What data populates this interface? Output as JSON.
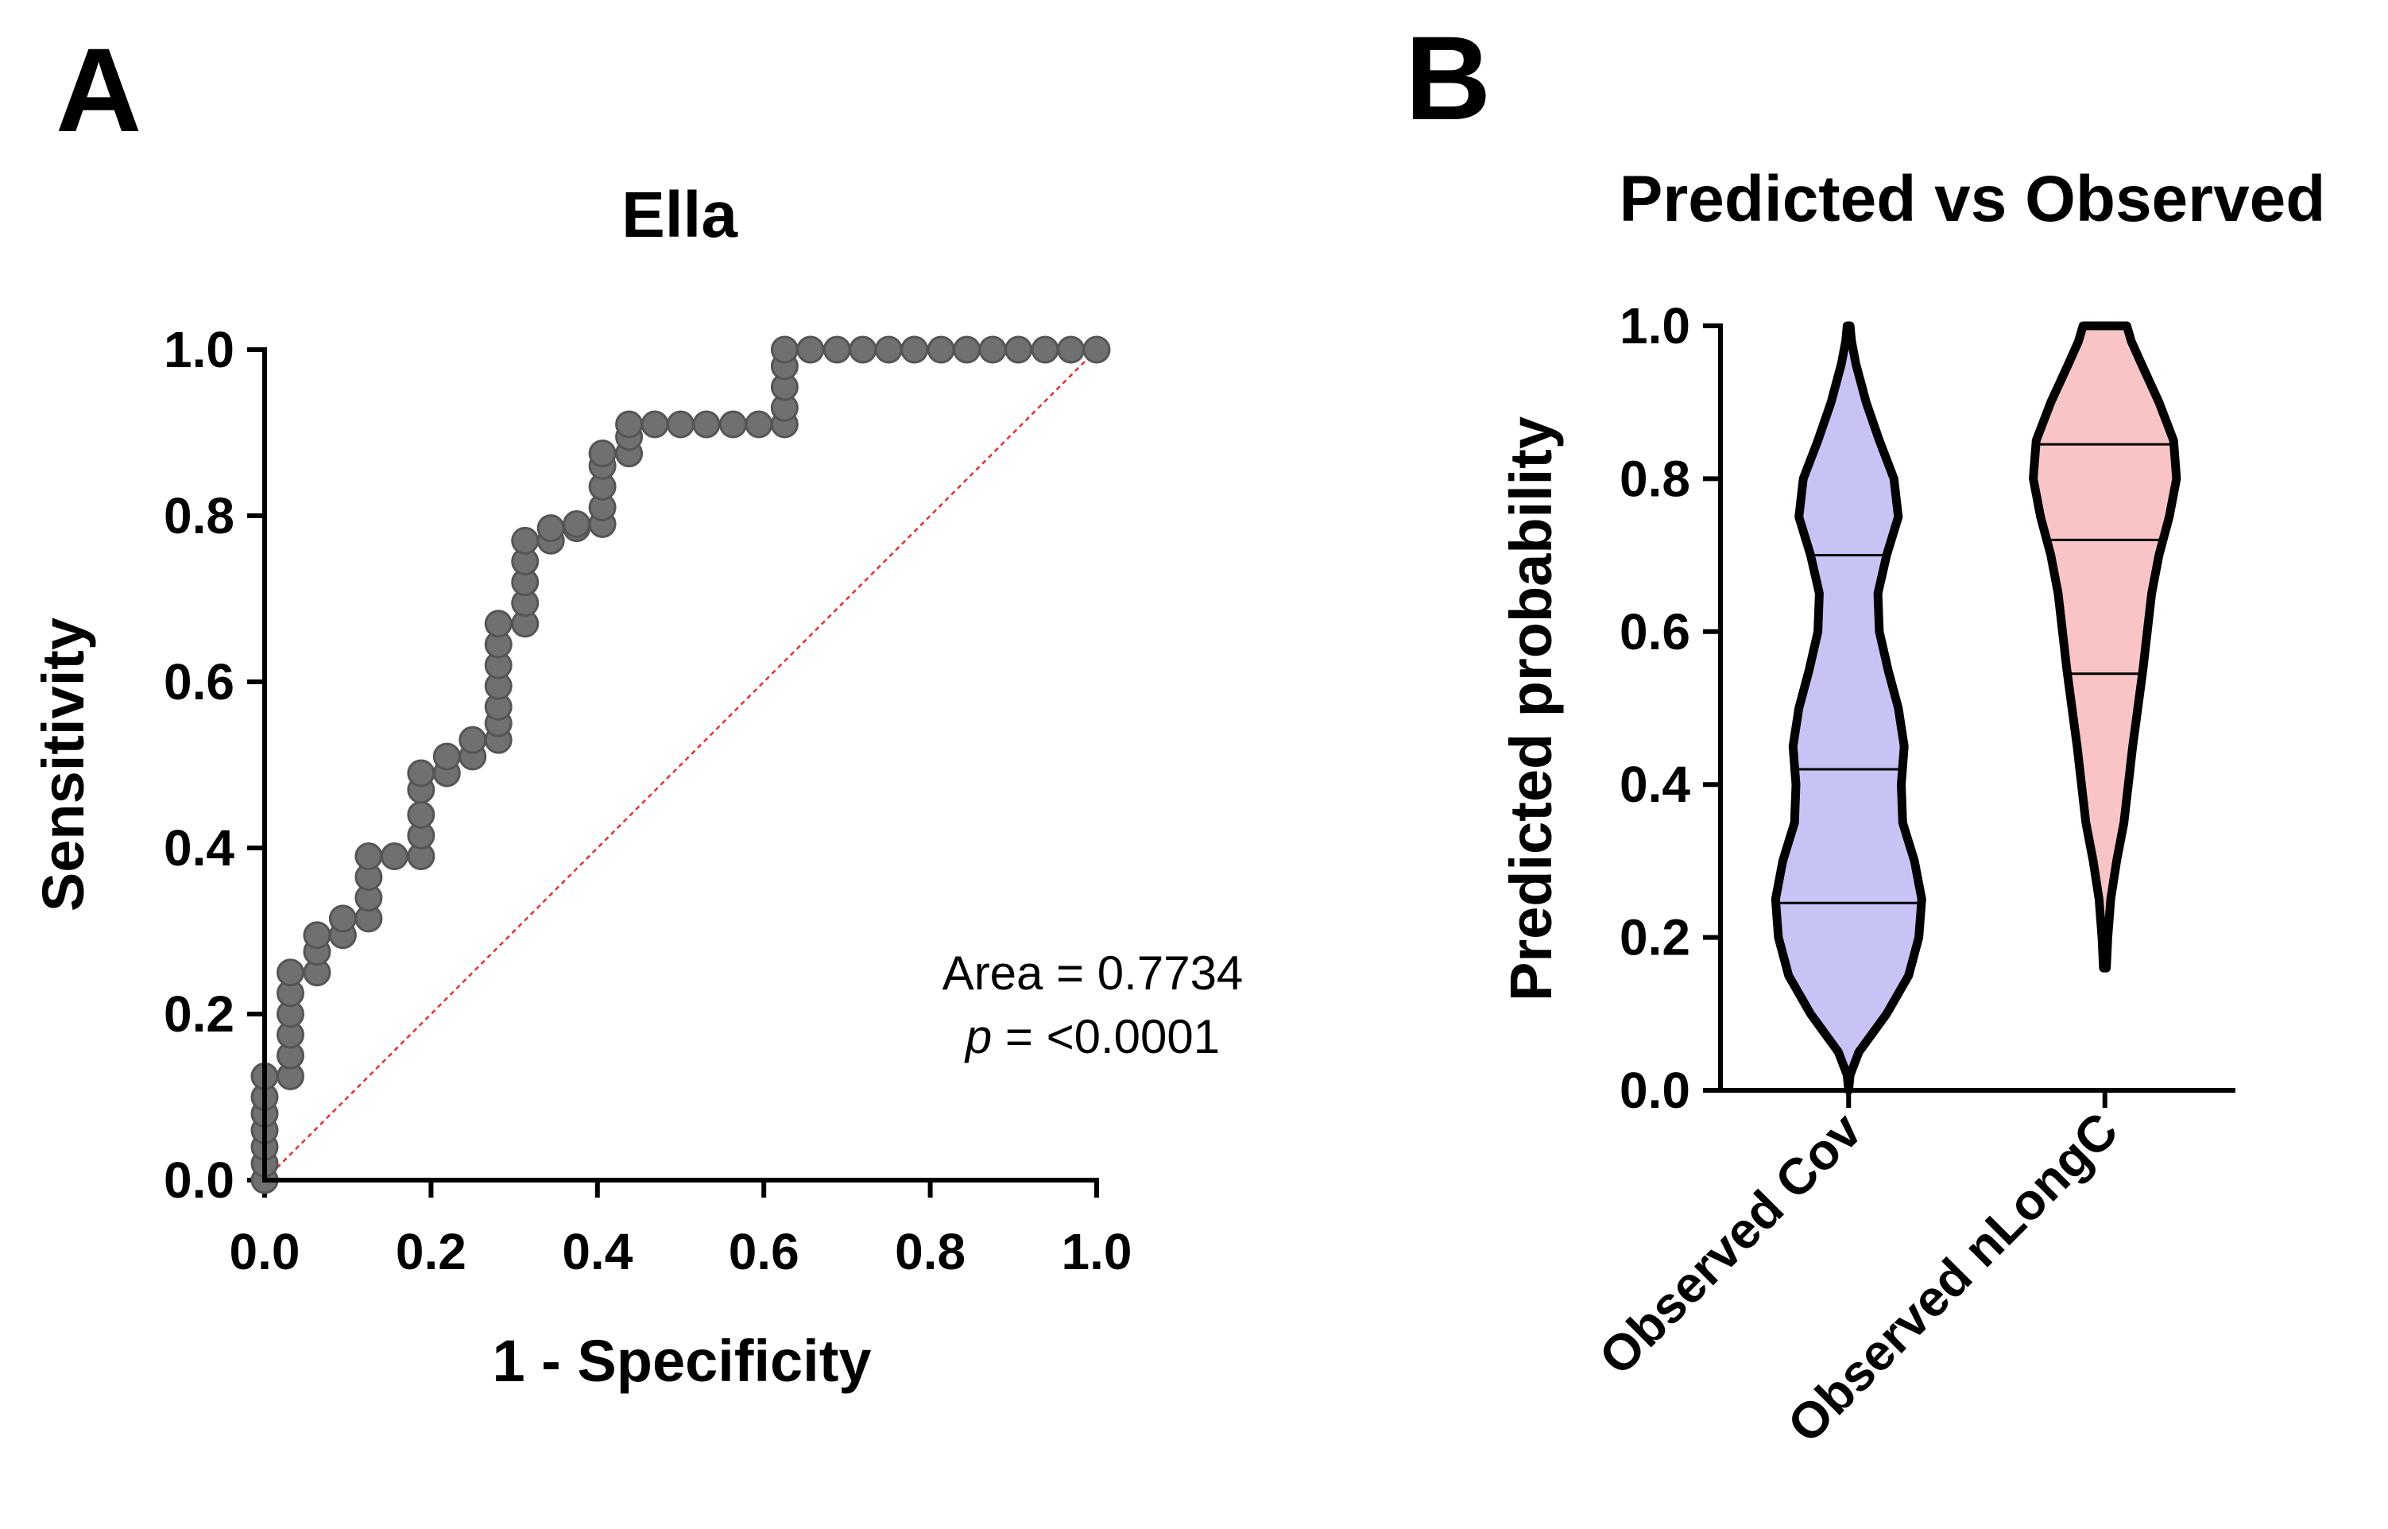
{
  "chart_data": [
    {
      "panel": "A",
      "type": "line",
      "title": "Ella",
      "xlabel": "1 - Specificity",
      "ylabel": "Sensitivity",
      "xlim": [
        0,
        1
      ],
      "ylim": [
        0,
        1
      ],
      "xticks": [
        "0.0",
        "0.2",
        "0.4",
        "0.6",
        "0.8",
        "1.0"
      ],
      "yticks": [
        "0.0",
        "0.2",
        "0.4",
        "0.6",
        "0.8",
        "1.0"
      ],
      "grid": false,
      "annotation": {
        "area_label": "Area = 0.7734",
        "p_symbol": "p",
        "p_value": " = <0.0001"
      },
      "series": [
        {
          "name": "ROC curve",
          "color": "#000000",
          "marker_color": "#707070",
          "points": [
            [
              0.0,
              0.0
            ],
            [
              0.0,
              0.02
            ],
            [
              0.0,
              0.04
            ],
            [
              0.0,
              0.06
            ],
            [
              0.0,
              0.08
            ],
            [
              0.0,
              0.1
            ],
            [
              0.0,
              0.125
            ],
            [
              0.031,
              0.125
            ],
            [
              0.031,
              0.15
            ],
            [
              0.031,
              0.175
            ],
            [
              0.031,
              0.2
            ],
            [
              0.031,
              0.225
            ],
            [
              0.031,
              0.25
            ],
            [
              0.063,
              0.25
            ],
            [
              0.063,
              0.275
            ],
            [
              0.063,
              0.295
            ],
            [
              0.094,
              0.295
            ],
            [
              0.094,
              0.315
            ],
            [
              0.125,
              0.315
            ],
            [
              0.125,
              0.34
            ],
            [
              0.125,
              0.365
            ],
            [
              0.125,
              0.39
            ],
            [
              0.156,
              0.39
            ],
            [
              0.188,
              0.39
            ],
            [
              0.188,
              0.415
            ],
            [
              0.188,
              0.44
            ],
            [
              0.188,
              0.47
            ],
            [
              0.188,
              0.49
            ],
            [
              0.219,
              0.49
            ],
            [
              0.219,
              0.51
            ],
            [
              0.25,
              0.51
            ],
            [
              0.25,
              0.53
            ],
            [
              0.281,
              0.53
            ],
            [
              0.281,
              0.55
            ],
            [
              0.281,
              0.57
            ],
            [
              0.281,
              0.595
            ],
            [
              0.281,
              0.62
            ],
            [
              0.281,
              0.645
            ],
            [
              0.281,
              0.67
            ],
            [
              0.313,
              0.67
            ],
            [
              0.313,
              0.695
            ],
            [
              0.313,
              0.72
            ],
            [
              0.313,
              0.745
            ],
            [
              0.313,
              0.77
            ],
            [
              0.344,
              0.77
            ],
            [
              0.344,
              0.785
            ],
            [
              0.375,
              0.785
            ],
            [
              0.375,
              0.79
            ],
            [
              0.406,
              0.79
            ],
            [
              0.406,
              0.81
            ],
            [
              0.406,
              0.835
            ],
            [
              0.406,
              0.86
            ],
            [
              0.406,
              0.875
            ],
            [
              0.438,
              0.875
            ],
            [
              0.438,
              0.895
            ],
            [
              0.438,
              0.91
            ],
            [
              0.469,
              0.91
            ],
            [
              0.5,
              0.91
            ],
            [
              0.531,
              0.91
            ],
            [
              0.563,
              0.91
            ],
            [
              0.594,
              0.91
            ],
            [
              0.625,
              0.91
            ],
            [
              0.625,
              0.93
            ],
            [
              0.625,
              0.955
            ],
            [
              0.625,
              0.98
            ],
            [
              0.625,
              1.0
            ],
            [
              0.656,
              1.0
            ],
            [
              0.688,
              1.0
            ],
            [
              0.719,
              1.0
            ],
            [
              0.75,
              1.0
            ],
            [
              0.781,
              1.0
            ],
            [
              0.813,
              1.0
            ],
            [
              0.844,
              1.0
            ],
            [
              0.875,
              1.0
            ],
            [
              0.906,
              1.0
            ],
            [
              0.938,
              1.0
            ],
            [
              0.969,
              1.0
            ],
            [
              1.0,
              1.0
            ]
          ]
        },
        {
          "name": "Reference line",
          "color": "#e8302a",
          "style": "dashed",
          "points": [
            [
              0,
              0
            ],
            [
              1,
              1
            ]
          ]
        }
      ]
    },
    {
      "panel": "B",
      "type": "violin",
      "title": "Predicted vs Observed",
      "xlabel": "",
      "ylabel": "Predicted probability",
      "ylim": [
        0,
        1
      ],
      "yticks": [
        "0.0",
        "0.2",
        "0.4",
        "0.6",
        "0.8",
        "1.0"
      ],
      "grid": false,
      "categories": [
        "Observed Cov",
        "Observed nLongC"
      ],
      "series": [
        {
          "name": "Observed Cov",
          "fill": "#c7c4f5",
          "min": 0.0,
          "max": 1.0,
          "quartiles": [
            0.245,
            0.42,
            0.7
          ],
          "density": [
            [
              0.0,
              0.0
            ],
            [
              0.02,
              0.02
            ],
            [
              0.05,
              0.14
            ],
            [
              0.1,
              0.52
            ],
            [
              0.15,
              0.82
            ],
            [
              0.2,
              0.96
            ],
            [
              0.25,
              1.0
            ],
            [
              0.3,
              0.9
            ],
            [
              0.35,
              0.74
            ],
            [
              0.4,
              0.72
            ],
            [
              0.45,
              0.76
            ],
            [
              0.5,
              0.68
            ],
            [
              0.55,
              0.54
            ],
            [
              0.6,
              0.42
            ],
            [
              0.65,
              0.4
            ],
            [
              0.7,
              0.52
            ],
            [
              0.75,
              0.68
            ],
            [
              0.8,
              0.62
            ],
            [
              0.85,
              0.42
            ],
            [
              0.9,
              0.24
            ],
            [
              0.95,
              0.1
            ],
            [
              0.98,
              0.04
            ],
            [
              1.0,
              0.02
            ]
          ]
        },
        {
          "name": "Observed nLongC",
          "fill": "#f9c4c5",
          "min": 0.16,
          "max": 1.0,
          "quartiles": [
            0.545,
            0.72,
            0.845
          ],
          "density": [
            [
              0.16,
              0.02
            ],
            [
              0.2,
              0.04
            ],
            [
              0.25,
              0.08
            ],
            [
              0.3,
              0.16
            ],
            [
              0.35,
              0.26
            ],
            [
              0.4,
              0.32
            ],
            [
              0.45,
              0.38
            ],
            [
              0.5,
              0.45
            ],
            [
              0.55,
              0.52
            ],
            [
              0.6,
              0.58
            ],
            [
              0.65,
              0.64
            ],
            [
              0.7,
              0.74
            ],
            [
              0.75,
              0.88
            ],
            [
              0.8,
              0.98
            ],
            [
              0.85,
              0.94
            ],
            [
              0.9,
              0.74
            ],
            [
              0.95,
              0.5
            ],
            [
              0.98,
              0.36
            ],
            [
              1.0,
              0.3
            ]
          ]
        }
      ]
    }
  ]
}
